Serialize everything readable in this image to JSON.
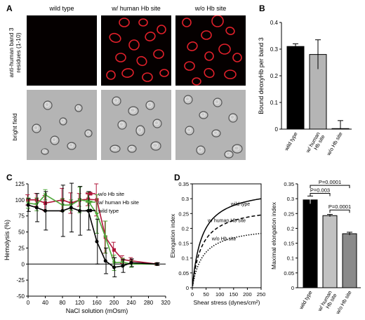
{
  "panels": {
    "A": "A",
    "B": "B",
    "C": "C",
    "D": "D"
  },
  "panelA": {
    "column_headers": [
      "wild type",
      "w/ human Hb site",
      "w/o Hb site"
    ],
    "row_labels": [
      "anti-human band 3 residues (1-10)",
      "bright field"
    ],
    "row_label_lines": [
      [
        "anti-human band 3",
        "residues (1-10)"
      ],
      [
        "bright field"
      ]
    ]
  },
  "chart_data": [
    {
      "panel": "B",
      "type": "bar",
      "categories": [
        "wild type",
        "w/ human Hb site",
        "w/o Hb site"
      ],
      "category_lines": [
        [
          "wild type"
        ],
        [
          "w/ human",
          "Hb site"
        ],
        [
          "w/o Hb site"
        ]
      ],
      "values": [
        0.31,
        0.28,
        0.002
      ],
      "errors": [
        0.01,
        0.055,
        0.03
      ],
      "colors": [
        "#000000",
        "#b5b5b5",
        "#ffffff"
      ],
      "ylabel": "Bound deoxyHb per band 3",
      "ylim": [
        0,
        0.4
      ],
      "yticks": [
        "0",
        "0.1",
        "0.2",
        "0.3",
        "0.4"
      ],
      "ytick_values": [
        0,
        0.1,
        0.2,
        0.3,
        0.4
      ]
    },
    {
      "panel": "C",
      "type": "line",
      "xlabel": "NaCl solution (mOsm)",
      "ylabel": "Hemolysis (%)",
      "xlim": [
        0,
        320
      ],
      "ylim": [
        -50,
        125
      ],
      "xticks": [
        "0",
        "40",
        "80",
        "120",
        "160",
        "200",
        "240",
        "280",
        "320"
      ],
      "xtick_values": [
        0,
        40,
        80,
        120,
        160,
        200,
        240,
        280,
        320
      ],
      "yticks": [
        "-50",
        "-25",
        "0",
        "25",
        "50",
        "75",
        "100",
        "125"
      ],
      "ytick_values": [
        -50,
        -25,
        0,
        25,
        50,
        75,
        100,
        125
      ],
      "x": [
        0,
        20,
        40,
        80,
        100,
        120,
        140,
        160,
        180,
        200,
        220,
        240,
        300
      ],
      "series": [
        {
          "name": "w/o Hb site",
          "color": "#b0163a",
          "values": [
            100,
            100,
            95,
            100,
            95,
            100,
            101,
            100,
            42,
            22,
            7,
            5,
            0
          ],
          "errors": [
            8,
            10,
            12,
            18,
            16,
            10,
            10,
            25,
            25,
            12,
            6,
            5,
            2
          ]
        },
        {
          "name": "w/ human Hb site",
          "color": "#4fa83a",
          "values": [
            95,
            93,
            108,
            92,
            92,
            100,
            98,
            78,
            42,
            2,
            3,
            0,
            0
          ],
          "errors": [
            8,
            10,
            8,
            10,
            8,
            20,
            15,
            30,
            25,
            12,
            6,
            5,
            2
          ]
        },
        {
          "name": "wild type",
          "color": "#000000",
          "values": [
            92,
            88,
            83,
            83,
            88,
            83,
            83,
            35,
            5,
            -5,
            -3,
            2,
            0
          ],
          "errors": [
            10,
            22,
            30,
            40,
            38,
            38,
            30,
            35,
            20,
            15,
            10,
            6,
            2
          ]
        }
      ],
      "legend": "top-right"
    },
    {
      "panel": "D-left",
      "type": "line",
      "xlabel": "Shear stress (dynes/cm²)",
      "ylabel": "Elongation index",
      "xlim": [
        0,
        250
      ],
      "ylim": [
        0,
        0.35
      ],
      "xticks": [
        "0",
        "50",
        "100",
        "150",
        "200",
        "250"
      ],
      "xtick_values": [
        0,
        50,
        100,
        150,
        200,
        250
      ],
      "yticks": [
        "0",
        "0.05",
        "0.1",
        "0.15",
        "0.2",
        "0.25",
        "0.3",
        "0.35"
      ],
      "ytick_values": [
        0,
        0.05,
        0.1,
        0.15,
        0.2,
        0.25,
        0.3,
        0.35
      ],
      "series": [
        {
          "name": "wild type",
          "style": "solid",
          "plateau": 0.3,
          "k": 35
        },
        {
          "name": "w/ human Hb site",
          "style": "dashed",
          "plateau": 0.245,
          "k": 35
        },
        {
          "name": "w/o Hb site",
          "style": "dotted",
          "plateau": 0.183,
          "k": 38
        }
      ]
    },
    {
      "panel": "D-right",
      "type": "bar",
      "categories": [
        "wild type",
        "w/ human Hb site",
        "w/o Hb site"
      ],
      "category_lines": [
        [
          "wild type"
        ],
        [
          "w/ human",
          "Hb site"
        ],
        [
          "w/o Hb site"
        ]
      ],
      "values": [
        0.296,
        0.243,
        0.182
      ],
      "errors": [
        0.013,
        0.004,
        0.005
      ],
      "colors": [
        "#000000",
        "#c2c2c2",
        "#8a8a8a"
      ],
      "ylabel": "Maximal elongation index",
      "ylim": [
        0,
        0.35
      ],
      "yticks": [
        "0",
        "0.05",
        "0.1",
        "0.15",
        "0.2",
        "0.25",
        "0.3",
        "0.35"
      ],
      "ytick_values": [
        0,
        0.05,
        0.1,
        0.15,
        0.2,
        0.25,
        0.3,
        0.35
      ],
      "annotations": [
        {
          "text": "P=0.0001",
          "from": 0,
          "to": 2
        },
        {
          "text": "P=0.003",
          "from": 0,
          "to": 1
        },
        {
          "text": "P=0.0001",
          "from": 1,
          "to": 2
        }
      ]
    }
  ]
}
